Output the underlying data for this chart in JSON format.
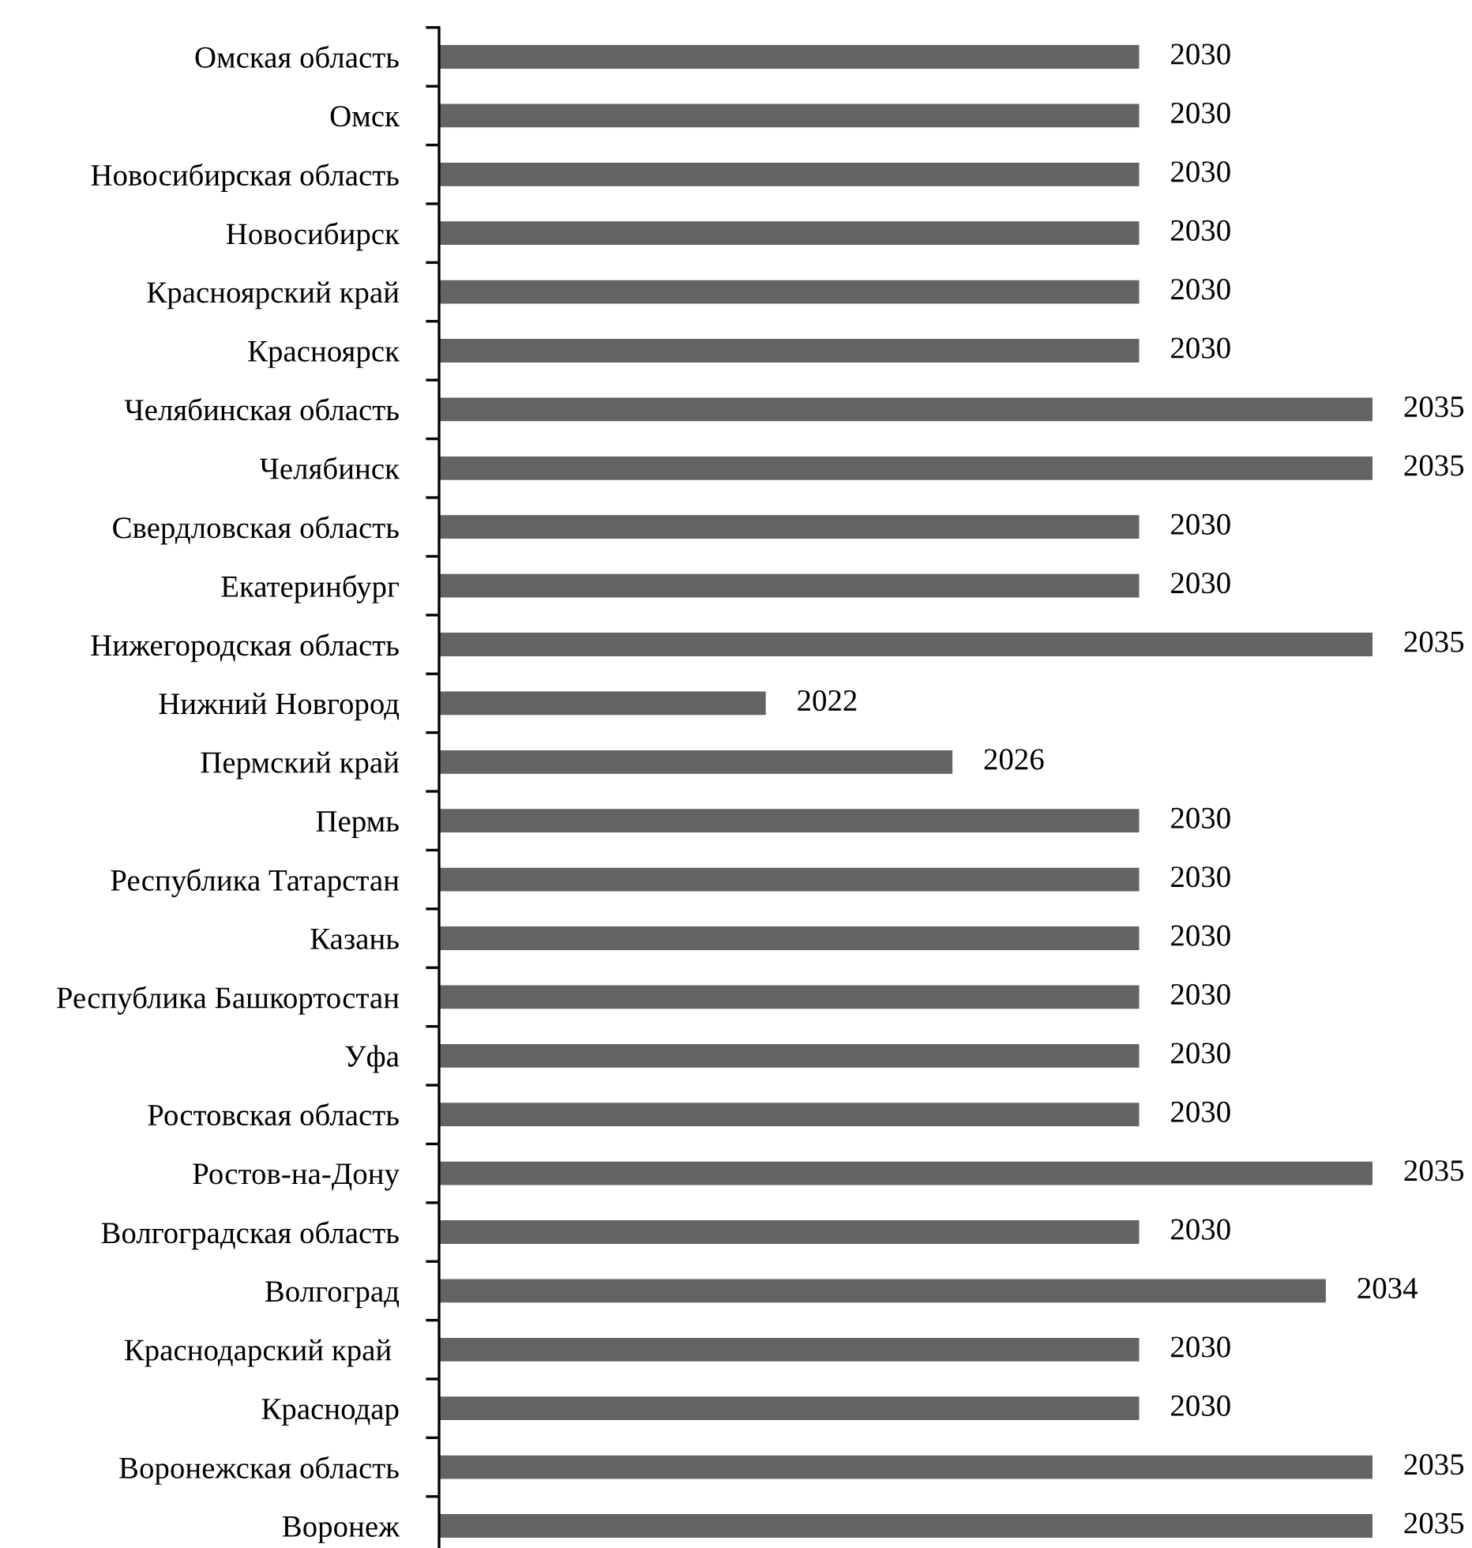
{
  "chart_data": {
    "type": "bar",
    "orientation": "horizontal",
    "tick_labels": "y",
    "data_labels": true,
    "grid": false,
    "legend": false,
    "xlim": [
      2015,
      2035
    ],
    "categories": [
      "Омская область",
      "Омск",
      "Новосибирская область",
      "Новосибирск",
      "Красноярский край",
      "Красноярск",
      "Челябинская область",
      "Челябинск",
      "Свердловская область",
      "Екатеринбург",
      "Нижегородская область",
      "Нижний Новгород",
      "Пермский край",
      "Пермь",
      "Республика Татарстан",
      "Казань",
      "Республика Башкортостан",
      "Уфа",
      "Ростовская область",
      "Ростов-на-Дону",
      "Волгоградская область",
      "Волгоград",
      "Краснодарский край ",
      "Краснодар",
      "Воронежская область",
      "Воронеж"
    ],
    "series": [
      {
        "color": "#636365",
        "values": [
          2030,
          2030,
          2030,
          2030,
          2030,
          2030,
          2035,
          2035,
          2030,
          2030,
          2035,
          2022,
          2026,
          2030,
          2030,
          2030,
          2030,
          2030,
          2030,
          2035,
          2030,
          2034,
          2030,
          2030,
          2035,
          2035
        ]
      }
    ]
  }
}
